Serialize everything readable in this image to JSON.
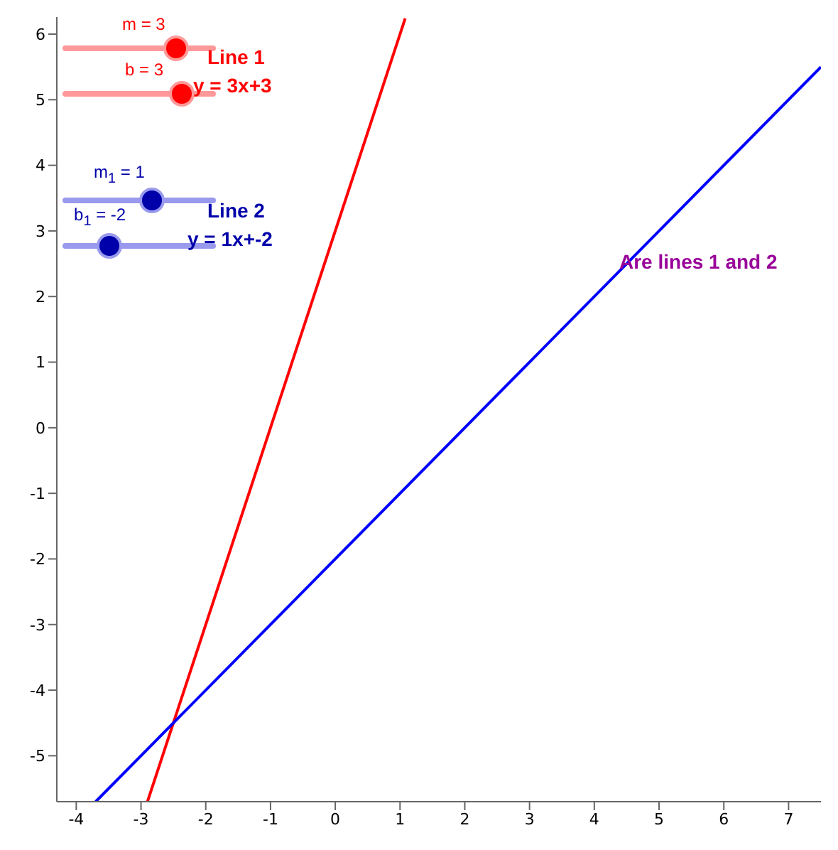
{
  "chart_data": {
    "type": "line",
    "xlim": [
      -4.3,
      7.5
    ],
    "ylim": [
      -5.7,
      6.26
    ],
    "xticks": [
      -4,
      -3,
      -2,
      -1,
      0,
      1,
      2,
      3,
      4,
      5,
      6,
      7
    ],
    "yticks": [
      -5,
      -4,
      -3,
      -2,
      -1,
      0,
      1,
      2,
      3,
      4,
      5,
      6
    ],
    "marker": "none",
    "line_style": "solid",
    "series": [
      {
        "color": "#ff0000",
        "x": [
          -2.9,
          1.08
        ],
        "values": [
          -5.7,
          6.24
        ]
      },
      {
        "color": "#0000ff",
        "x": [
          -3.7,
          7.5
        ],
        "values": [
          -5.7,
          5.5
        ]
      }
    ],
    "annotations": [
      "m = 3",
      "b = 3",
      "Line 1",
      "y = 3x+3",
      "m$_{1}$ = 1",
      "b$_{1}$ = -2",
      "Line 2",
      "y = 1x+-2",
      "Are lines 1 and 2"
    ]
  }
}
